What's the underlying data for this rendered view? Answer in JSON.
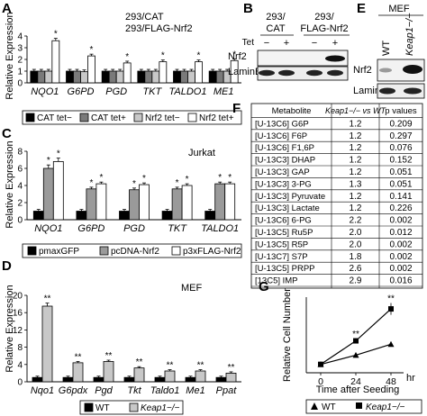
{
  "panels": {
    "A": {
      "letter": "A",
      "legend_top": [
        "293/CAT",
        "293/FLAG-Nrf2"
      ],
      "ylabel": "Relative Expression",
      "yticks": [
        "0",
        "1",
        "2",
        "3",
        "4"
      ],
      "legend": [
        "CAT tet−",
        "CAT tet+",
        "Nrf2 tet−",
        "Nrf2 tet+"
      ]
    },
    "B": {
      "letter": "B",
      "col_labels": [
        "293/\nCAT",
        "293/\nFLAG-Nrf2"
      ],
      "col_label_a": "293/",
      "col_label_a2": "CAT",
      "col_label_b": "293/",
      "col_label_b2": "FLAG-Nrf2",
      "tet_label": "Tet",
      "tet_signs": [
        "−",
        "+",
        "−",
        "+"
      ],
      "rows": [
        "Nrf2",
        "LaminB"
      ]
    },
    "C": {
      "letter": "C",
      "cell_label": "Jurkat",
      "ylabel": "Relative Expression",
      "yticks": [
        "0",
        "2",
        "4",
        "6",
        "8"
      ],
      "legend": [
        "pmaxGFP",
        "pcDNA-Nrf2",
        "p3xFLAG-Nrf2"
      ]
    },
    "D": {
      "letter": "D",
      "cell_label": "MEF",
      "ylabel": "Relative Expression",
      "yticks": [
        "0",
        "4",
        "8",
        "12",
        "16",
        "20"
      ],
      "legend": [
        "WT",
        "Keap1−/−"
      ]
    },
    "E": {
      "letter": "E",
      "cell_label": "MEF",
      "col_labels": [
        "WT",
        "Keap1−/−"
      ],
      "rows": [
        "Nrf2",
        "LaminB"
      ]
    },
    "F": {
      "letter": "F",
      "headers": [
        "Metabolite",
        "Keap1−/− vs WT",
        "p values"
      ],
      "rows": [
        [
          "[U-13C6] G6P",
          "1.2",
          "0.209"
        ],
        [
          "[U-13C6] F6P",
          "1.2",
          "0.297"
        ],
        [
          "[U-13C6] F1,6P",
          "1.2",
          "0.076"
        ],
        [
          "[U-13C3] DHAP",
          "1.2",
          "0.152"
        ],
        [
          "[U-13C3] GAP",
          "1.2",
          "0.051"
        ],
        [
          "[U-13C3] 3-PG",
          "1.3",
          "0.051"
        ],
        [
          "[U-13C3] Pyruvate",
          "1.2",
          "0.141"
        ],
        [
          "[U-13C3] Lactate",
          "1.2",
          "0.226"
        ],
        [
          "[U-13C6] 6-PG",
          "2.2",
          "0.002"
        ],
        [
          "[U-13C5] Ru5P",
          "2.0",
          "0.012"
        ],
        [
          "[U-13C5] R5P",
          "2.0",
          "0.002"
        ],
        [
          "[U-13C7] S7P",
          "1.8",
          "0.002"
        ],
        [
          "[U-13C5] PRPP",
          "2.6",
          "0.002"
        ],
        [
          "[13C5] IMP",
          "2.9",
          "0.016"
        ]
      ]
    },
    "G": {
      "letter": "G",
      "ylabel": "Relative Cell Number",
      "xlabel": "Time after Seeding",
      "xunit": "hr",
      "legend": [
        "WT",
        "Keap1−/−"
      ]
    }
  },
  "chart_data": [
    {
      "panel": "A",
      "type": "bar",
      "categories": [
        "NQO1",
        "G6PD",
        "PGD",
        "TKT",
        "TALDO1",
        "ME1"
      ],
      "series": [
        {
          "name": "CAT tet−",
          "values": [
            1.0,
            1.0,
            1.0,
            1.0,
            1.0,
            1.0
          ]
        },
        {
          "name": "CAT tet+",
          "values": [
            1.0,
            1.0,
            1.0,
            1.0,
            1.0,
            1.0
          ]
        },
        {
          "name": "Nrf2 tet−",
          "values": [
            1.0,
            0.95,
            1.0,
            1.0,
            1.0,
            1.0
          ]
        },
        {
          "name": "Nrf2 tet+",
          "values": [
            3.6,
            2.3,
            1.7,
            1.8,
            1.8,
            1.9
          ]
        }
      ],
      "significance": [
        "*",
        "*",
        "*",
        "*",
        "*",
        "*"
      ],
      "ylabel": "Relative Expression",
      "ylim": [
        0,
        4
      ],
      "colors": [
        "#000000",
        "#7a7a7a",
        "#c8c8c8",
        "#ffffff"
      ]
    },
    {
      "panel": "C",
      "type": "bar",
      "categories": [
        "NQO1",
        "G6PD",
        "PGD",
        "TKT",
        "TALDO1"
      ],
      "series": [
        {
          "name": "pmaxGFP",
          "values": [
            1.0,
            1.0,
            1.0,
            1.0,
            1.0
          ]
        },
        {
          "name": "pcDNA-Nrf2",
          "values": [
            6.0,
            3.6,
            3.5,
            3.6,
            4.2
          ]
        },
        {
          "name": "p3xFLAG-Nrf2",
          "values": [
            6.8,
            4.2,
            4.1,
            4.0,
            4.2
          ]
        }
      ],
      "significance": [
        "*",
        "*",
        "*",
        "*",
        "*"
      ],
      "ylabel": "Relative Expression",
      "ylim": [
        0,
        8
      ],
      "colors": [
        "#000000",
        "#9a9a9a",
        "#ffffff"
      ]
    },
    {
      "panel": "D",
      "type": "bar",
      "categories": [
        "Nqo1",
        "G6pdx",
        "Pgd",
        "Tkt",
        "Taldo1",
        "Me1",
        "Ppat"
      ],
      "series": [
        {
          "name": "WT",
          "values": [
            1.0,
            1.0,
            1.0,
            1.0,
            1.0,
            1.0,
            1.0
          ]
        },
        {
          "name": "Keap1−/−",
          "values": [
            17.5,
            4.4,
            4.7,
            3.2,
            2.5,
            2.5,
            2.0
          ]
        }
      ],
      "significance": [
        "**",
        "**",
        "**",
        "**",
        "**",
        "**",
        "**"
      ],
      "ylabel": "Relative Expression",
      "ylim": [
        0,
        20
      ],
      "colors": [
        "#000000",
        "#c8c8c8"
      ]
    },
    {
      "panel": "G",
      "type": "line",
      "x": [
        0,
        24,
        48
      ],
      "xticks": [
        "0",
        "24",
        "48"
      ],
      "series": [
        {
          "name": "WT",
          "values": [
            1.0,
            2.1,
            3.4
          ],
          "marker": "triangle"
        },
        {
          "name": "Keap1−/−",
          "values": [
            1.0,
            3.8,
            7.6
          ],
          "marker": "square"
        }
      ],
      "significance": [
        "",
        "**",
        "**"
      ],
      "xlabel": "Time after Seeding",
      "ylabel": "Relative Cell Number",
      "xlim": [
        0,
        48
      ],
      "ylim": [
        0,
        9
      ]
    }
  ]
}
